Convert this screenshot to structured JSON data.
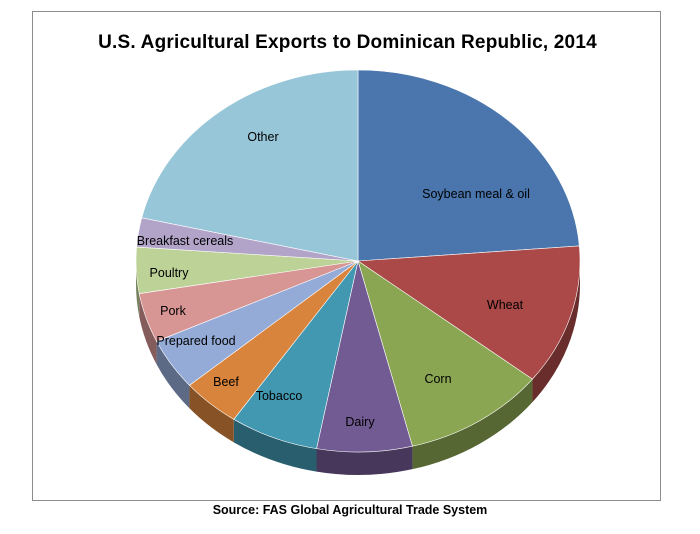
{
  "chart_data": {
    "type": "pie",
    "title": "U.S. Agricultural Exports to Dominican Republic, 2014",
    "categories": [
      "Soybean meal & oil",
      "Wheat",
      "Corn",
      "Dairy",
      "Tobacco",
      "Beef",
      "Prepared food",
      "Pork",
      "Poultry",
      "Breakfast cereals",
      "Other"
    ],
    "values": [
      25.0,
      12.5,
      11.0,
      7.3,
      6.8,
      4.5,
      4.6,
      4.4,
      4.1,
      2.6,
      22.5
    ],
    "units": "percent share (estimated)",
    "colors": [
      "#4a76ad",
      "#aa4947",
      "#8aa652",
      "#725a92",
      "#4198b0",
      "#d9843c",
      "#94abd8",
      "#d79594",
      "#bcd296",
      "#b2a4c8",
      "#97c6d9"
    ]
  },
  "source": "Source: FAS Global Agricultural Trade System"
}
